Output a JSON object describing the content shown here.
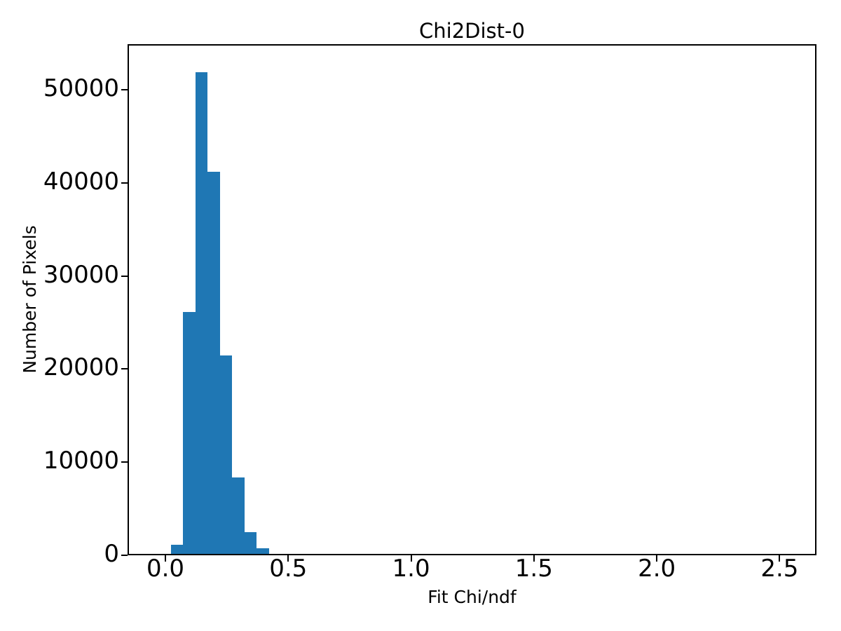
{
  "figure": {
    "background": "#ffffff",
    "text_color": "#000000"
  },
  "chart_data": {
    "type": "bar",
    "subtype": "histogram",
    "title": "Chi2Dist-0",
    "xlabel": "Fit Chi/ndf",
    "ylabel": "Number of Pixels",
    "bar_color": "#1f77b4",
    "axis_color": "#000000",
    "grid": false,
    "legend": null,
    "bin_edges": [
      0.022,
      0.072,
      0.122,
      0.172,
      0.222,
      0.272,
      0.322,
      0.372,
      0.422,
      0.472,
      0.522
    ],
    "counts": [
      1150,
      26100,
      51900,
      41200,
      21500,
      8350,
      2500,
      730,
      150,
      110
    ],
    "xlim": [
      -0.154,
      2.65
    ],
    "ylim": [
      0,
      54900
    ],
    "x_ticks": [
      0.0,
      0.5,
      1.0,
      1.5,
      2.0,
      2.5
    ],
    "x_tick_labels": [
      "0.0",
      "0.5",
      "1.0",
      "1.5",
      "2.0",
      "2.5"
    ],
    "y_ticks": [
      0,
      10000,
      20000,
      30000,
      40000,
      50000
    ],
    "y_tick_labels": [
      "0",
      "10000",
      "20000",
      "30000",
      "40000",
      "50000"
    ]
  }
}
